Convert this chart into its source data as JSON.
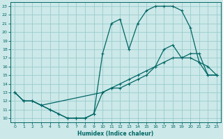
{
  "xlabel": "Humidex (Indice chaleur)",
  "background_color": "#cce8e8",
  "grid_color": "#99cccc",
  "line_color": "#006666",
  "xlim": [
    -0.5,
    23.5
  ],
  "ylim": [
    9.5,
    23.5
  ],
  "xticks": [
    0,
    1,
    2,
    3,
    4,
    5,
    6,
    7,
    8,
    9,
    10,
    11,
    12,
    13,
    14,
    15,
    16,
    17,
    18,
    19,
    20,
    21,
    22,
    23
  ],
  "yticks": [
    10,
    11,
    12,
    13,
    14,
    15,
    16,
    17,
    18,
    19,
    20,
    21,
    22,
    23
  ],
  "line1_x": [
    0,
    1,
    2,
    3,
    4,
    5,
    6,
    7,
    8,
    9,
    10,
    11,
    12,
    13,
    14,
    15,
    16,
    17,
    18,
    19,
    20,
    21,
    22,
    23
  ],
  "line1_y": [
    13,
    12,
    12,
    11.5,
    11,
    10.5,
    10,
    10,
    10,
    10.5,
    13,
    13.5,
    14,
    14.5,
    15,
    15.5,
    16,
    16.5,
    17,
    17,
    17.5,
    17.5,
    15,
    15
  ],
  "line2_x": [
    0,
    1,
    2,
    3,
    4,
    5,
    6,
    7,
    8,
    9,
    10,
    11,
    12,
    13,
    14,
    15,
    16,
    17,
    18,
    19,
    20,
    21,
    22,
    23
  ],
  "line2_y": [
    13,
    12,
    12,
    11.5,
    11,
    10.5,
    10,
    10,
    10,
    10.5,
    17.5,
    21,
    21.5,
    18,
    21,
    22.5,
    23,
    23,
    23,
    22.5,
    20.5,
    16.5,
    16,
    15
  ],
  "line3_x": [
    0,
    1,
    2,
    3,
    10,
    11,
    12,
    13,
    14,
    15,
    16,
    17,
    18,
    19,
    20,
    21,
    22,
    23
  ],
  "line3_y": [
    13,
    12,
    12,
    11.5,
    13,
    13.5,
    13.5,
    14,
    14.5,
    15,
    16,
    18,
    18.5,
    17,
    17,
    16.5,
    15,
    15
  ]
}
